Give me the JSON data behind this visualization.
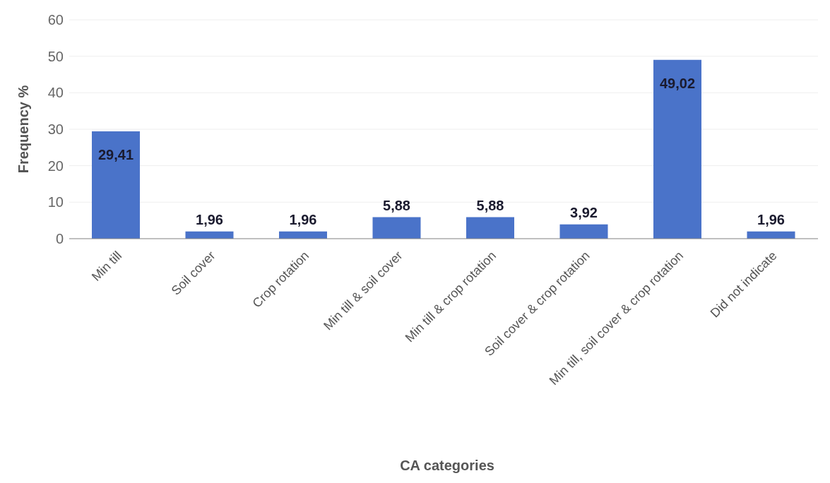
{
  "chart_data": {
    "type": "bar",
    "xlabel": "CA categories",
    "ylabel": "Frequency %",
    "categories": [
      "Min till",
      "Soil cover",
      "Crop rotation",
      "Min till & soil cover",
      "Min till & crop rotation",
      "Soil cover & crop rotation",
      "Min till, soil cover & crop rotation",
      "Did not indicate"
    ],
    "values": [
      29.41,
      1.96,
      1.96,
      5.88,
      5.88,
      3.92,
      49.02,
      1.96
    ],
    "value_labels": [
      "29,41",
      "1,96",
      "1,96",
      "5,88",
      "5,88",
      "3,92",
      "49,02",
      "1,96"
    ],
    "color": "#4a73c9",
    "ylim": [
      0,
      60
    ],
    "yticks": [
      0,
      10,
      20,
      30,
      40,
      50,
      60
    ],
    "grid": "y"
  }
}
